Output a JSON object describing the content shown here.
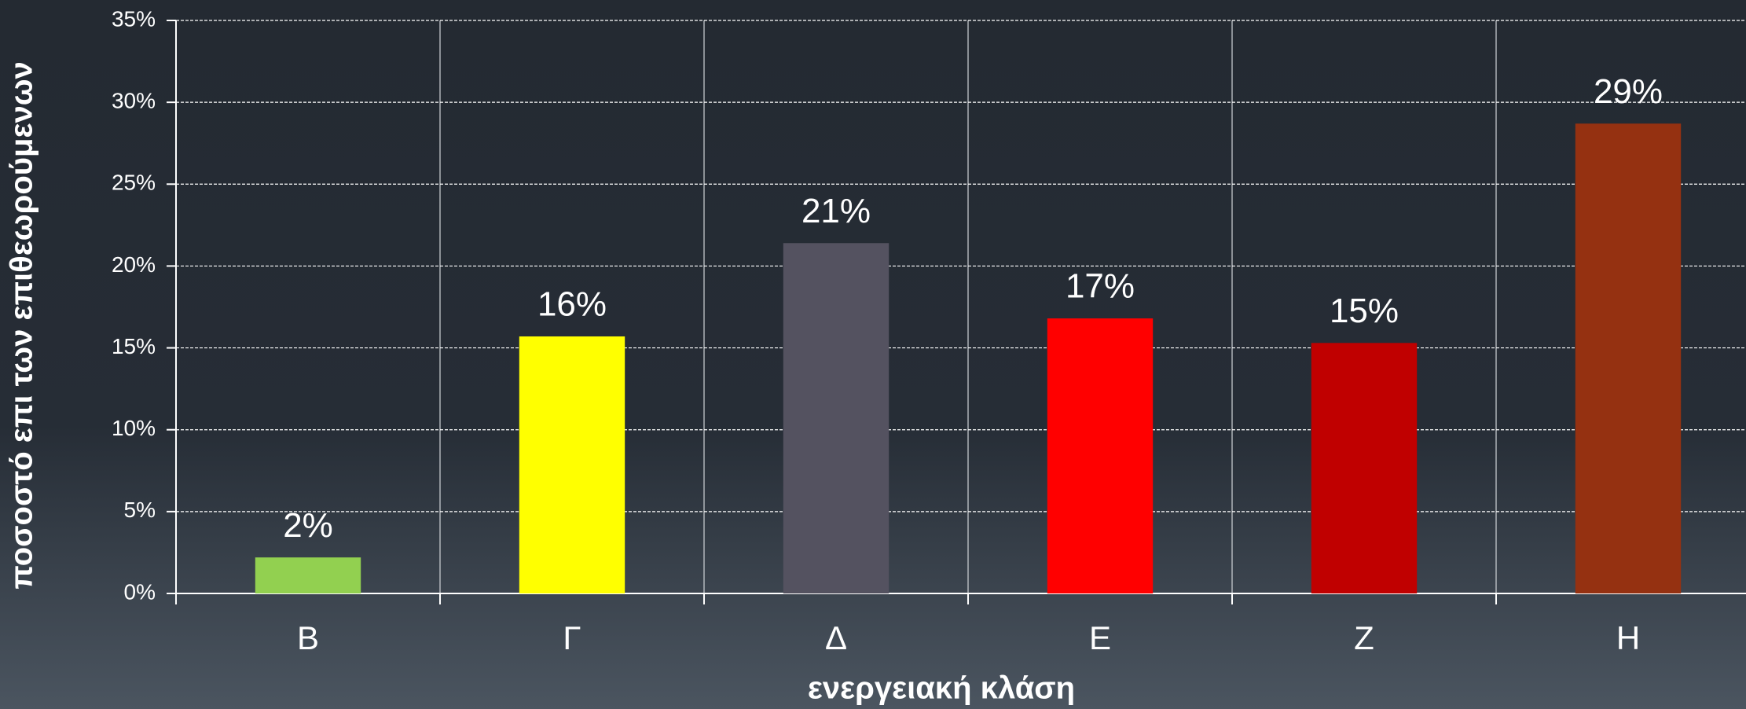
{
  "chart_data": {
    "type": "bar",
    "xlabel": "ενεργειακή κλάση",
    "ylabel": "ποσοστό επι των επιθεωρούμενων",
    "categories": [
      "B",
      "Γ",
      "Δ",
      "E",
      "Z",
      "H"
    ],
    "values": [
      2.2,
      15.7,
      21.4,
      16.8,
      15.3,
      28.7
    ],
    "value_labels": [
      "2%",
      "16%",
      "21%",
      "17%",
      "15%",
      "29%"
    ],
    "colors": [
      "#92d050",
      "#ffff00",
      "#545260",
      "#ff0000",
      "#c00000",
      "#953111"
    ],
    "ylim": [
      0,
      35
    ],
    "yticks": [
      {
        "value": 0,
        "label": "0%"
      },
      {
        "value": 5,
        "label": "5%"
      },
      {
        "value": 10,
        "label": "10%"
      },
      {
        "value": 15,
        "label": "15%"
      },
      {
        "value": 20,
        "label": "20%"
      },
      {
        "value": 25,
        "label": "25%"
      },
      {
        "value": 30,
        "label": "30%"
      },
      {
        "value": 35,
        "label": "35%"
      }
    ],
    "grid": true
  }
}
